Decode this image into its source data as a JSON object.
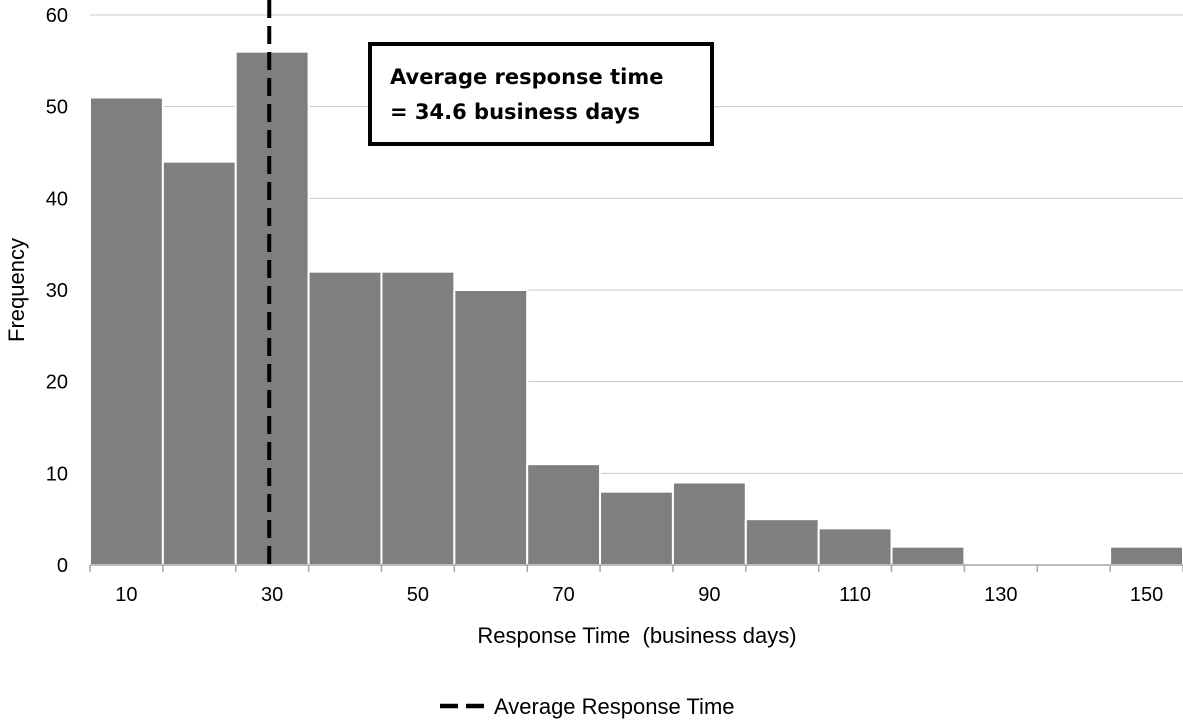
{
  "chart_data": {
    "type": "bar",
    "subtype": "histogram",
    "bin_edges": [
      0,
      10,
      20,
      30,
      40,
      50,
      60,
      70,
      80,
      90,
      100,
      110,
      120,
      130,
      140,
      150
    ],
    "values": [
      51,
      44,
      56,
      32,
      32,
      30,
      11,
      8,
      9,
      5,
      4,
      2,
      0,
      0,
      2
    ],
    "x_tick_labels": [
      "10",
      "30",
      "50",
      "70",
      "90",
      "110",
      "130",
      "150"
    ],
    "y_tick_labels": [
      "0",
      "10",
      "20",
      "30",
      "40",
      "50",
      "60"
    ],
    "xlim": [
      0,
      150
    ],
    "ylim": [
      0,
      60
    ],
    "xlabel": "Response Time  (business days)",
    "ylabel": "Frequency",
    "average_line": {
      "x": 34.6,
      "style": "dashed",
      "color": "#000000"
    },
    "annotation": {
      "line1": "Average response time",
      "line2": "= 34.6 business days"
    },
    "legend": {
      "label": "Average Response Time",
      "placement": "bottom-center"
    },
    "bar_color": "#7f7f7f",
    "grid_color": "#c8c8c8",
    "grid": true
  }
}
